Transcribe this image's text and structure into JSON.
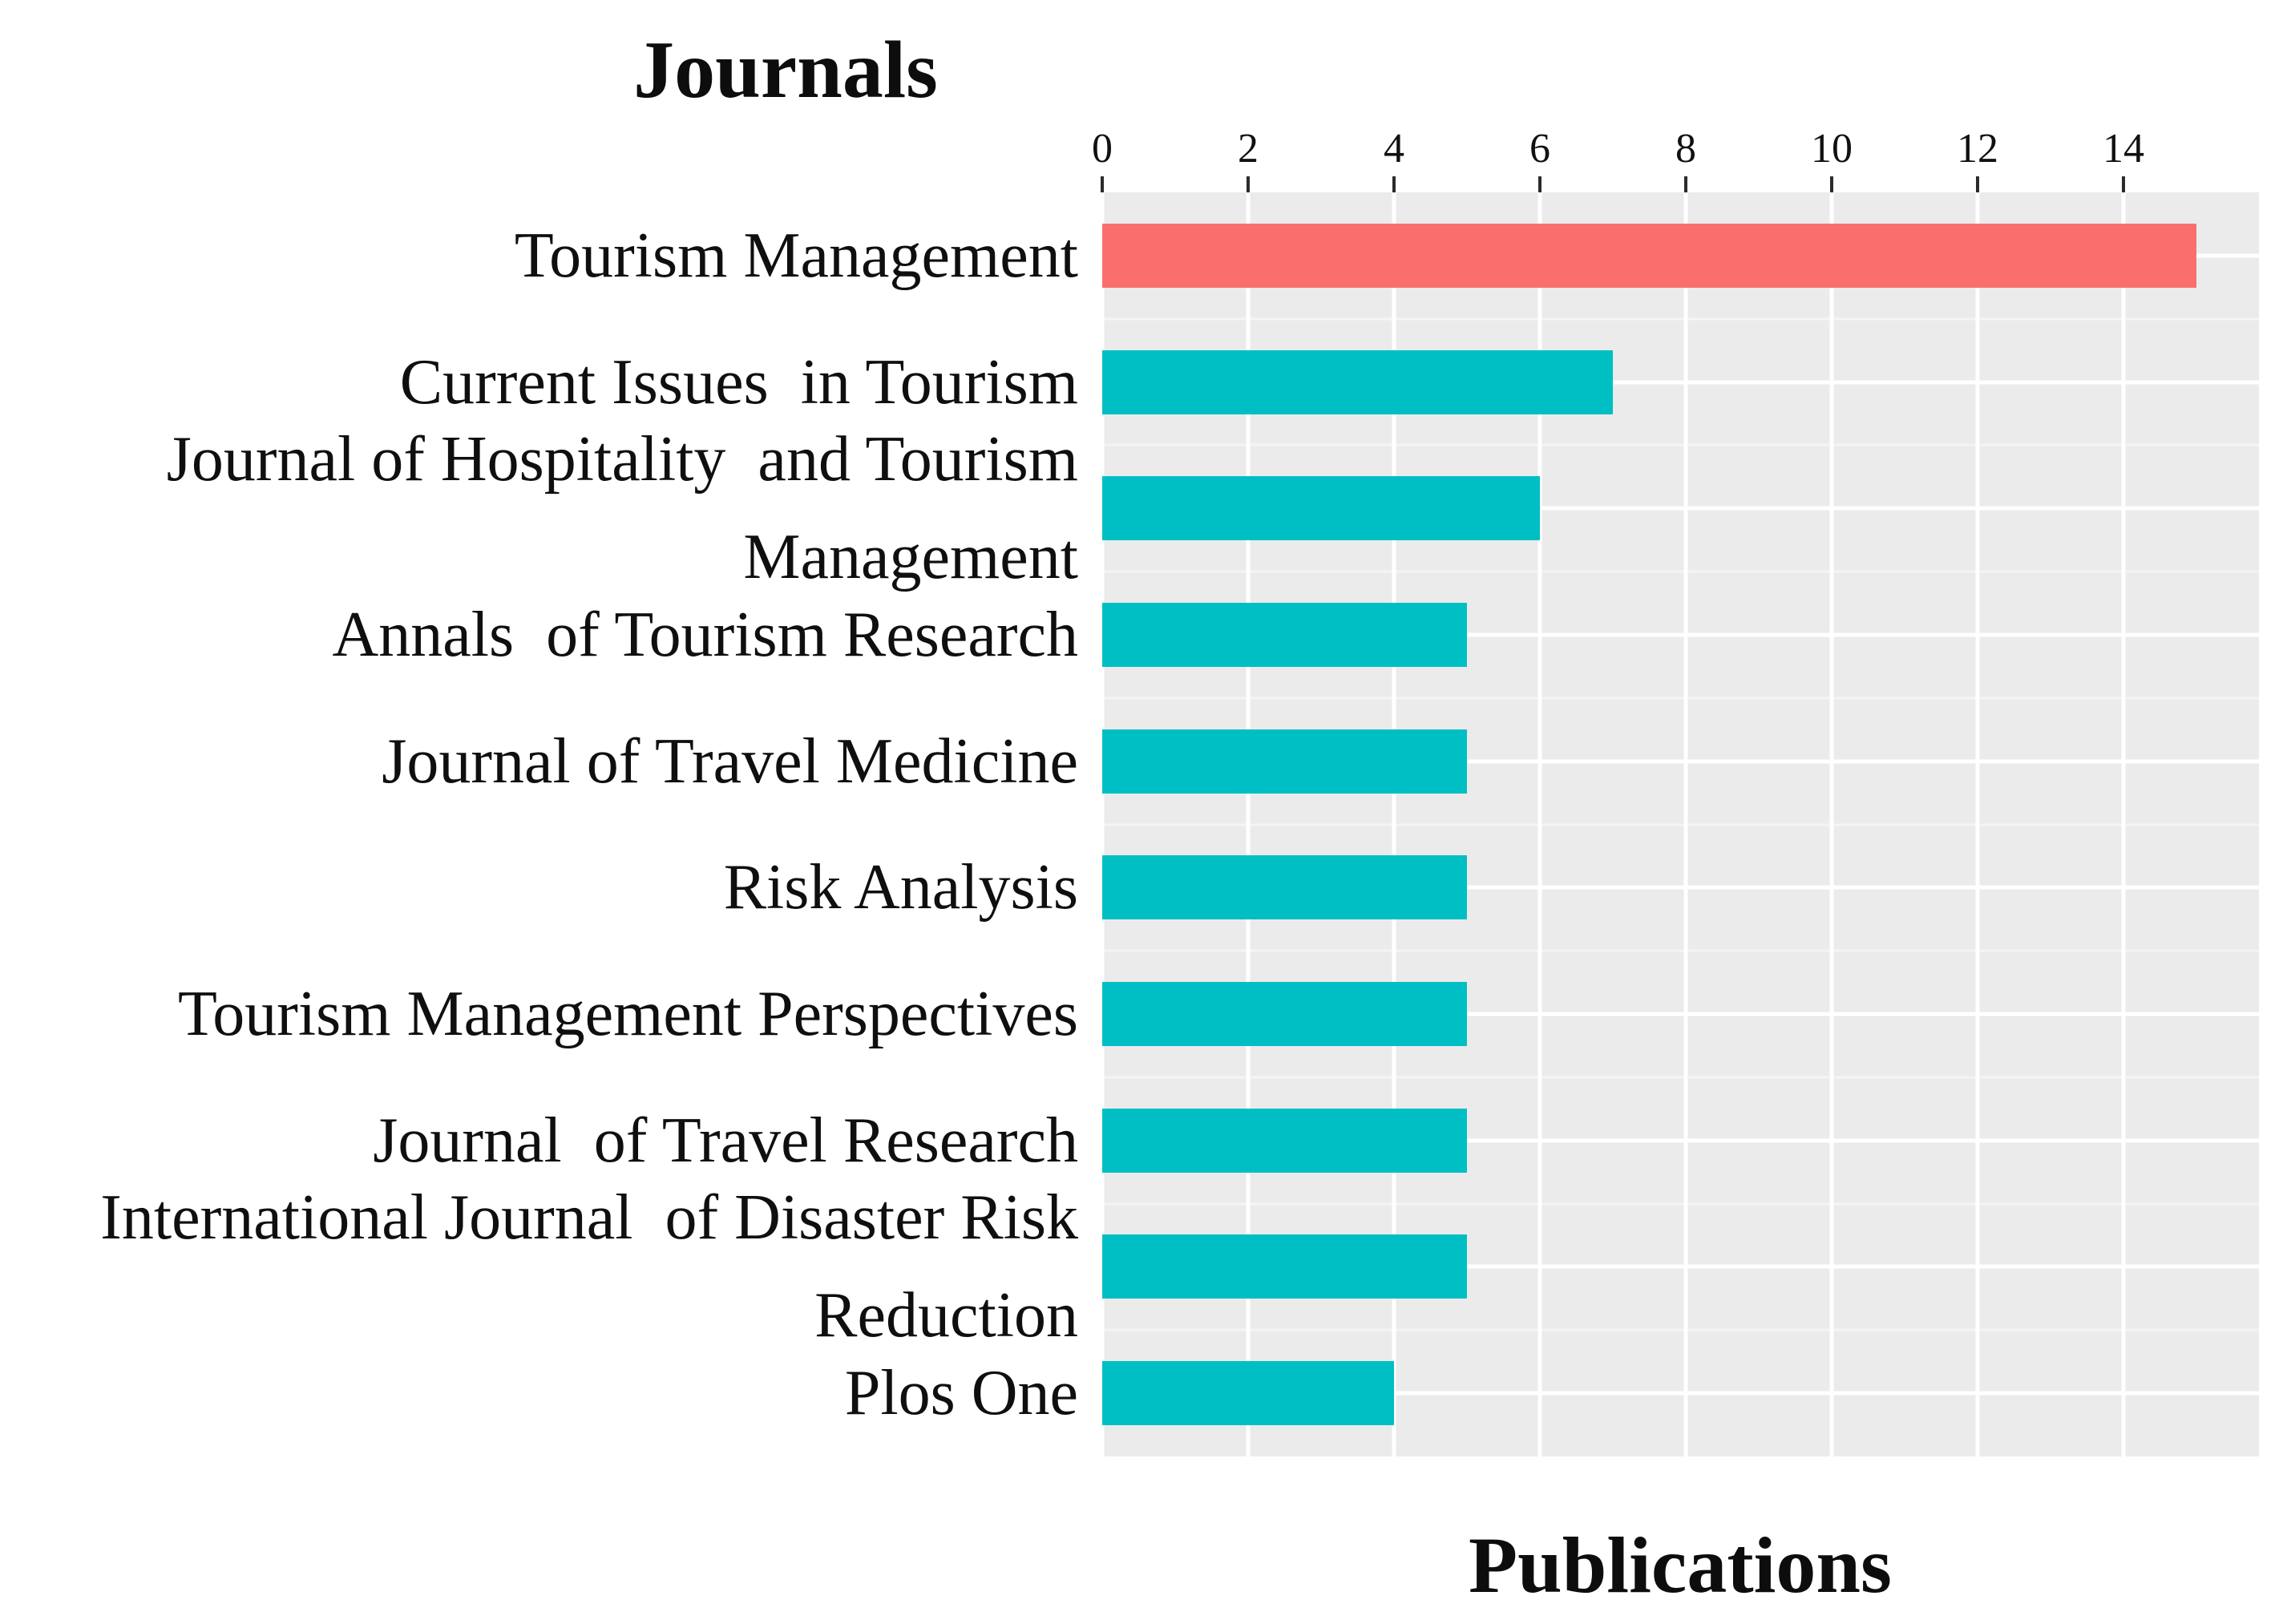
{
  "page": {
    "background": "#ffffff"
  },
  "header": {
    "title": "Journals"
  },
  "axis": {
    "x_label": "Publications",
    "x_tick_labels": [
      "0",
      "2",
      "4",
      "6",
      "8",
      "10",
      "12",
      "14"
    ]
  },
  "chart_data": {
    "type": "bar",
    "orientation": "horizontal",
    "title": "Journals",
    "xlabel": "Publications",
    "ylabel": "",
    "categories": [
      "Tourism Management",
      "Current Issues in Tourism",
      "Journal of Hospitality and Tourism Management",
      "Annals of Tourism Research",
      "Journal of Travel Medicine",
      "Risk Analysis",
      "Tourism Management Perspectives",
      "Journal of Travel Research",
      "International Journal of Disaster Risk Reduction",
      "Plos One"
    ],
    "values": [
      15,
      7,
      6,
      5,
      5,
      5,
      5,
      5,
      5,
      4
    ],
    "bar_colors": [
      "#FA6F6D",
      "#00BFC4",
      "#00BFC4",
      "#00BFC4",
      "#00BFC4",
      "#00BFC4",
      "#00BFC4",
      "#00BFC4",
      "#00BFC4",
      "#00BFC4"
    ],
    "highlight_color": "#FA6F6D",
    "default_bar_color": "#00BFC4",
    "panel_bg": "#EBEBEB",
    "grid_color": "#FFFFFF",
    "xlim": [
      0,
      15.8
    ],
    "xticks": [
      0,
      2,
      4,
      6,
      8,
      10,
      12,
      14
    ],
    "grid": true,
    "legend": false,
    "label_lines": [
      [
        "Tourism Management"
      ],
      [
        "Current Issues  in Tourism"
      ],
      [
        "Journal of Hospitality  and Tourism",
        "Management"
      ],
      [
        "Annals  of Tourism Research"
      ],
      [
        "Journal of Travel Medicine"
      ],
      [
        "Risk Analysis"
      ],
      [
        "Tourism Management Perspectives"
      ],
      [
        "Journal  of Travel Research"
      ],
      [
        "International Journal  of Disaster Risk",
        "Reduction"
      ],
      [
        "Plos One"
      ]
    ]
  }
}
